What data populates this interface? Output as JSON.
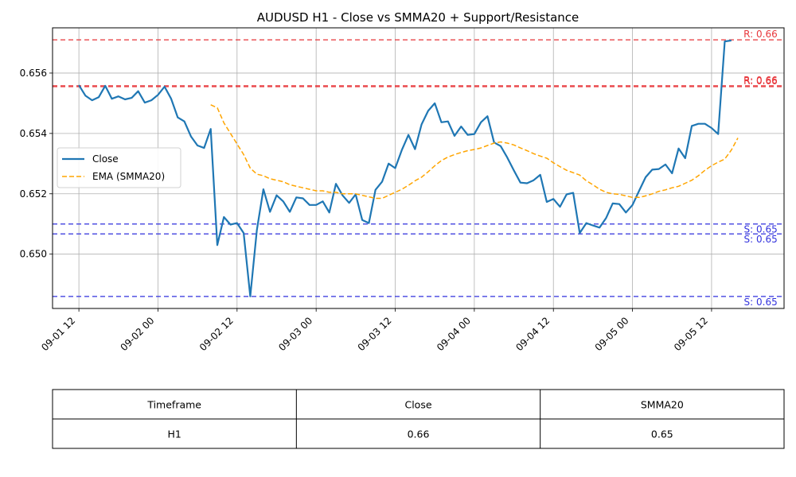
{
  "chart_data": {
    "type": "line",
    "title": "AUDUSD H1 - Close vs SMMA20 + Support/Resistance",
    "xlabel": "",
    "ylabel": "",
    "ylim": [
      0.6482,
      0.6575
    ],
    "xlim": [
      0,
      111
    ],
    "x_ticks": [
      {
        "i": 4,
        "label": "09-01 12"
      },
      {
        "i": 16,
        "label": "09-02 00"
      },
      {
        "i": 28,
        "label": "09-02 12"
      },
      {
        "i": 40,
        "label": "09-03 00"
      },
      {
        "i": 52,
        "label": "09-03 12"
      },
      {
        "i": 64,
        "label": "09-04 00"
      },
      {
        "i": 76,
        "label": "09-04 12"
      },
      {
        "i": 88,
        "label": "09-05 00"
      },
      {
        "i": 100,
        "label": "09-05 12"
      }
    ],
    "y_ticks": [
      0.65,
      0.652,
      0.654,
      0.656
    ],
    "y_tick_labels": [
      "0.650",
      "0.652",
      "0.654",
      "0.656"
    ],
    "grid": true,
    "legend_position": "center-left",
    "series": [
      {
        "name": "Close",
        "color": "#1f77b4",
        "style": "solid",
        "start_index": 4,
        "values": [
          0.6556,
          0.65525,
          0.6551,
          0.6552,
          0.65558,
          0.65515,
          0.65523,
          0.65513,
          0.65518,
          0.6554,
          0.65502,
          0.6551,
          0.65528,
          0.65555,
          0.65515,
          0.65453,
          0.6544,
          0.6539,
          0.6536,
          0.65352,
          0.65415,
          0.6503,
          0.65123,
          0.65098,
          0.65103,
          0.6507,
          0.6486,
          0.6508,
          0.65215,
          0.6514,
          0.65195,
          0.65175,
          0.6514,
          0.65188,
          0.65185,
          0.65163,
          0.65163,
          0.65175,
          0.65138,
          0.65233,
          0.65195,
          0.6517,
          0.65198,
          0.65113,
          0.65103,
          0.65213,
          0.6524,
          0.653,
          0.65285,
          0.65345,
          0.65395,
          0.65348,
          0.6543,
          0.65475,
          0.655,
          0.65437,
          0.6544,
          0.65392,
          0.65423,
          0.65395,
          0.65398,
          0.65437,
          0.65457,
          0.6537,
          0.65358,
          0.6532,
          0.65278,
          0.65237,
          0.65235,
          0.65245,
          0.65263,
          0.65173,
          0.65183,
          0.65157,
          0.65198,
          0.65203,
          0.6507,
          0.65103,
          0.65095,
          0.65088,
          0.6512,
          0.65168,
          0.65166,
          0.65138,
          0.65163,
          0.6521,
          0.65255,
          0.6528,
          0.65282,
          0.65297,
          0.65268,
          0.6535,
          0.65318,
          0.65425,
          0.65432,
          0.65432,
          0.65418,
          0.65398,
          0.65705,
          0.65708
        ]
      },
      {
        "name": "EMA (SMMA20)",
        "color": "#ffa500",
        "style": "dashed",
        "start_index": 24,
        "values": [
          0.65495,
          0.65485,
          0.65435,
          0.654,
          0.65365,
          0.6533,
          0.65285,
          0.65265,
          0.6526,
          0.6525,
          0.65245,
          0.6524,
          0.6523,
          0.65225,
          0.6522,
          0.65215,
          0.6521,
          0.6521,
          0.65205,
          0.65205,
          0.652,
          0.652,
          0.652,
          0.65195,
          0.6519,
          0.65185,
          0.65185,
          0.65195,
          0.65205,
          0.65215,
          0.65228,
          0.65243,
          0.65255,
          0.65273,
          0.65293,
          0.6531,
          0.65322,
          0.6533,
          0.65337,
          0.65343,
          0.65347,
          0.65352,
          0.6536,
          0.65368,
          0.65372,
          0.65368,
          0.65362,
          0.65352,
          0.65343,
          0.65333,
          0.65325,
          0.65318,
          0.65303,
          0.6529,
          0.65278,
          0.6527,
          0.65262,
          0.65243,
          0.6523,
          0.65215,
          0.65205,
          0.652,
          0.65198,
          0.65193,
          0.65188,
          0.65188,
          0.65193,
          0.652,
          0.65208,
          0.65213,
          0.6522,
          0.65225,
          0.65235,
          0.65245,
          0.6526,
          0.65278,
          0.65293,
          0.65305,
          0.65315,
          0.65345,
          0.65385
        ]
      }
    ],
    "levels": [
      {
        "kind": "resistance",
        "label": "R: 0.66",
        "value": 0.6571,
        "color": "#e8383d"
      },
      {
        "kind": "resistance",
        "label": "R: 0.66",
        "value": 0.65558,
        "color": "#e8383d"
      },
      {
        "kind": "resistance",
        "label": "R: 0.66",
        "value": 0.65555,
        "color": "#e8383d"
      },
      {
        "kind": "support",
        "label": "S: 0.65",
        "value": 0.651,
        "color": "#3333dd"
      },
      {
        "kind": "support",
        "label": "S: 0.65",
        "value": 0.65067,
        "color": "#3333dd"
      },
      {
        "kind": "support",
        "label": "S: 0.65",
        "value": 0.6486,
        "color": "#3333dd"
      }
    ]
  },
  "table": {
    "headers": [
      "Timeframe",
      "Close",
      "SMMA20"
    ],
    "rows": [
      [
        "H1",
        "0.66",
        "0.65"
      ]
    ]
  }
}
